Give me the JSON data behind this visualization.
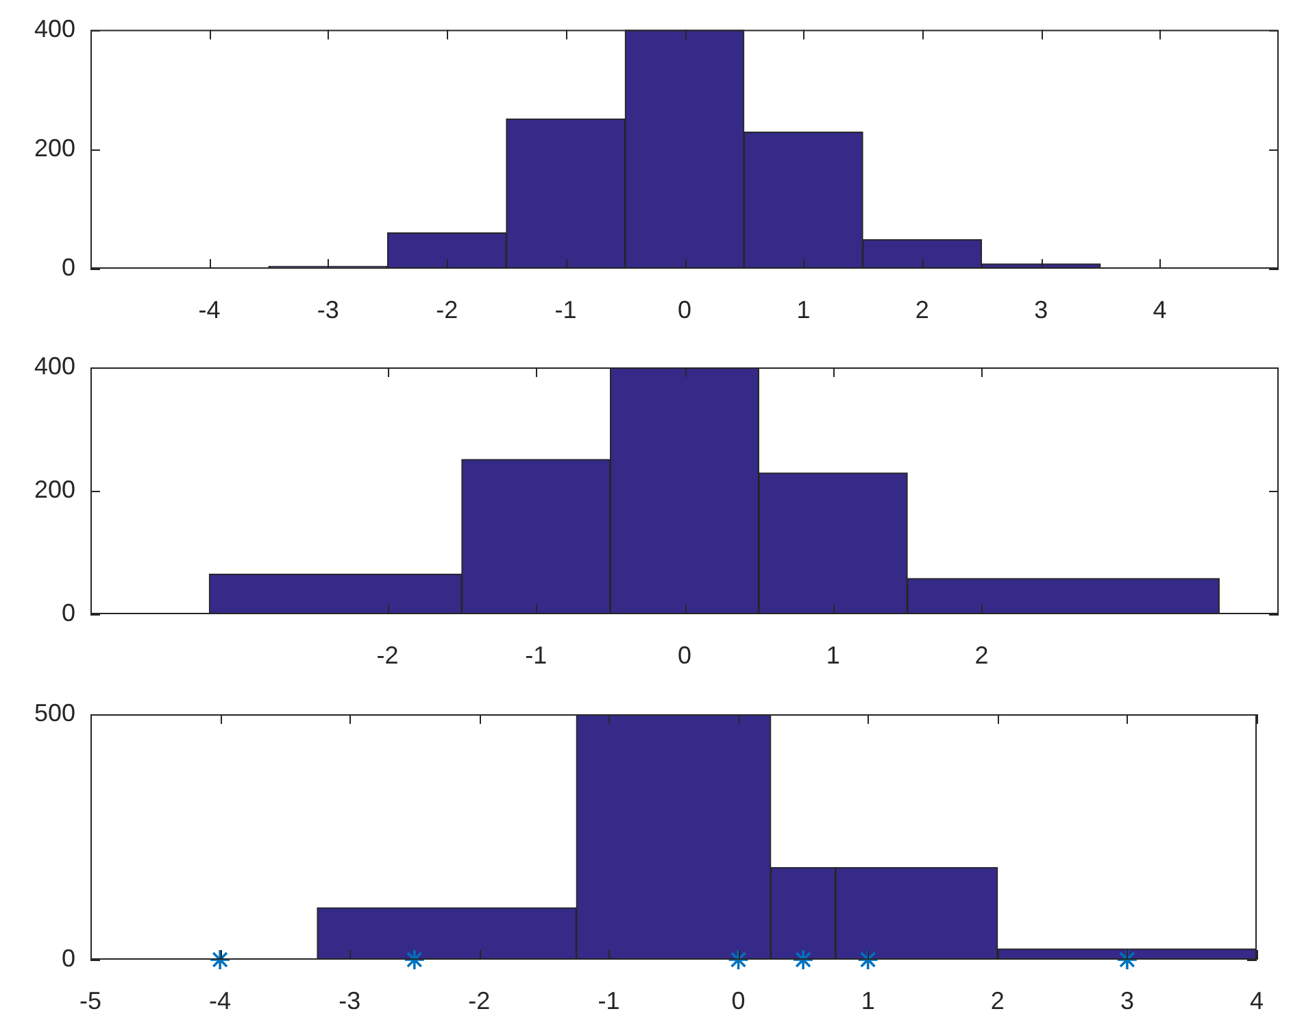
{
  "chart_data": [
    {
      "type": "histogram",
      "bins": [
        -4.5,
        -3.5,
        -2.5,
        -1.5,
        -0.5,
        0.5,
        1.5,
        2.5,
        3.5,
        4.5
      ],
      "values": [
        1,
        4,
        60,
        251,
        400,
        229,
        49,
        8,
        1
      ],
      "color": "#352a87",
      "xlim": [
        -5,
        5
      ],
      "xticks": [
        -4,
        -3,
        -2,
        -1,
        0,
        1,
        2,
        3,
        4
      ],
      "ylim": [
        0,
        400
      ],
      "yticks": [
        0,
        200,
        400
      ]
    },
    {
      "type": "histogram",
      "bins": [
        -3.2,
        -1.5,
        -0.5,
        0.5,
        1.5,
        3.6
      ],
      "values": [
        65,
        251,
        400,
        229,
        58
      ],
      "color": "#352a87",
      "xlim": [
        -4,
        4
      ],
      "xticks": [
        -2,
        -1,
        0,
        1,
        2
      ],
      "ylim": [
        0,
        400
      ],
      "yticks": [
        0,
        200,
        400
      ]
    },
    {
      "type": "histogram",
      "series": [
        {
          "bins": [
            -4.75,
            -3.25,
            -1.25,
            0.25,
            0.75,
            2,
            4
          ],
          "values": [
            2,
            106,
            500,
            188,
            188,
            22
          ],
          "color": "#352a87"
        },
        {
          "type": "scatter",
          "x": [
            -4,
            -2.5,
            0,
            0.5,
            1,
            3
          ],
          "values": [
            0,
            0,
            0,
            0,
            0,
            0
          ],
          "color": "#0072bd"
        }
      ],
      "marker": "cross",
      "xlim": [
        -5,
        4
      ],
      "xticks": [
        -5,
        -4,
        -3,
        -2,
        -1,
        0,
        1,
        2,
        3,
        4
      ],
      "ylim": [
        0,
        500
      ],
      "yticks": [
        0,
        500
      ]
    }
  ]
}
